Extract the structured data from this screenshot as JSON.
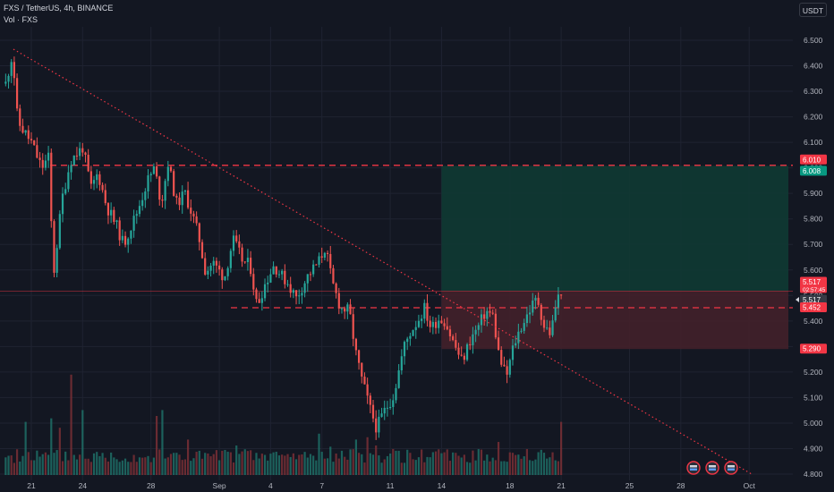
{
  "header": {
    "symbol_line": "FXS / TetherUS, 4h, BINANCE",
    "volume_label": "Vol · FXS",
    "unit_button": "USDT"
  },
  "colors": {
    "background": "#131722",
    "up": "#26a69a",
    "down": "#ef5350",
    "level_line": "#f23645",
    "trendline": "#f23645",
    "target_zone": "#0f3a33",
    "stop_zone": "#43202a",
    "grid": "#1f2331",
    "axis_text": "#b2b5be"
  },
  "chart_data": {
    "type": "candlestick",
    "title": "FXS / TetherUS, 4h, BINANCE",
    "price_axis": {
      "ylim": [
        4.78,
        6.58
      ],
      "ticks": [
        "6.500",
        "6.400",
        "6.300",
        "6.200",
        "6.100",
        "6.000",
        "5.900",
        "5.800",
        "5.700",
        "5.600",
        "5.500",
        "5.400",
        "5.300",
        "5.200",
        "5.100",
        "5.000",
        "4.900",
        "4.800"
      ]
    },
    "time_axis": {
      "ticks": [
        "21",
        "24",
        "28",
        "Sep",
        "4",
        "7",
        "11",
        "14",
        "18",
        "21",
        "25",
        "28",
        "Oct"
      ]
    },
    "price_labels": [
      {
        "text": "6.010",
        "value": 6.01,
        "color": "#f23645"
      },
      {
        "text": "6.008",
        "value": 6.008,
        "color": "#089981"
      },
      {
        "text": "5.517",
        "value": 5.517,
        "color": "#f23645",
        "sub": "02:57:45"
      },
      {
        "text": "5.517",
        "value": 5.517,
        "color": "#363a45"
      },
      {
        "text": "5.452",
        "value": 5.452,
        "color": "#f23645"
      },
      {
        "text": "5.290",
        "value": 5.29,
        "color": "#f23645"
      }
    ],
    "horizontal_levels": [
      {
        "value": 6.01,
        "style": "dashed"
      },
      {
        "value": 5.452,
        "style": "dashed"
      },
      {
        "value": 5.517,
        "style": "solid-thin"
      }
    ],
    "trendline": {
      "from_day": 21.0,
      "from_value": 6.47,
      "to_day": 48.0,
      "to_value": 4.8
    },
    "position": {
      "entry": 5.517,
      "target": 6.008,
      "stop": 5.29,
      "start_day": 45.0,
      "end_day": 48.7
    },
    "anchors": [
      [
        19.5,
        6.33
      ],
      [
        19.9,
        6.45
      ],
      [
        20.2,
        6.18
      ],
      [
        21.0,
        6.1
      ],
      [
        21.6,
        6.0
      ],
      [
        22.0,
        6.04
      ],
      [
        22.3,
        5.58
      ],
      [
        22.8,
        5.88
      ],
      [
        23.3,
        6.03
      ],
      [
        24.0,
        6.08
      ],
      [
        24.5,
        5.92
      ],
      [
        24.9,
        5.98
      ],
      [
        25.4,
        5.85
      ],
      [
        26.0,
        5.77
      ],
      [
        26.4,
        5.7
      ],
      [
        27.2,
        5.83
      ],
      [
        27.8,
        5.95
      ],
      [
        28.2,
        6.0
      ],
      [
        28.6,
        5.86
      ],
      [
        29.0,
        6.02
      ],
      [
        29.5,
        5.86
      ],
      [
        30.0,
        5.9
      ],
      [
        30.4,
        5.82
      ],
      [
        30.8,
        5.73
      ],
      [
        31.2,
        5.59
      ],
      [
        31.6,
        5.63
      ],
      [
        32.3,
        5.57
      ],
      [
        32.8,
        5.72
      ],
      [
        33.4,
        5.63
      ],
      [
        33.8,
        5.62
      ],
      [
        34.2,
        5.46
      ],
      [
        34.7,
        5.55
      ],
      [
        35.2,
        5.62
      ],
      [
        35.6,
        5.58
      ],
      [
        36.0,
        5.55
      ],
      [
        36.5,
        5.49
      ],
      [
        37.2,
        5.58
      ],
      [
        37.8,
        5.63
      ],
      [
        38.2,
        5.69
      ],
      [
        38.6,
        5.55
      ],
      [
        39.1,
        5.45
      ],
      [
        39.6,
        5.44
      ],
      [
        40.0,
        5.27
      ],
      [
        40.3,
        5.18
      ],
      [
        40.8,
        5.06
      ],
      [
        41.2,
        4.98
      ],
      [
        41.6,
        5.04
      ],
      [
        42.2,
        5.11
      ],
      [
        42.8,
        5.3
      ],
      [
        43.2,
        5.36
      ],
      [
        43.6,
        5.4
      ],
      [
        44.0,
        5.45
      ],
      [
        44.4,
        5.37
      ],
      [
        44.8,
        5.41
      ],
      [
        45.2,
        5.4
      ],
      [
        45.6,
        5.33
      ],
      [
        46.2,
        5.24
      ],
      [
        46.7,
        5.33
      ],
      [
        47.1,
        5.37
      ],
      [
        47.6,
        5.44
      ],
      [
        48.0,
        5.42
      ],
      [
        48.4,
        5.25
      ],
      [
        48.8,
        5.18
      ],
      [
        49.2,
        5.3
      ],
      [
        49.6,
        5.37
      ],
      [
        50.2,
        5.45
      ],
      [
        50.6,
        5.49
      ],
      [
        51.0,
        5.38
      ],
      [
        51.4,
        5.35
      ],
      [
        51.7,
        5.47
      ],
      [
        52.0,
        5.52
      ]
    ],
    "volume": {
      "spikes": [
        [
          23.3,
          0.85
        ],
        [
          20.6,
          0.45
        ],
        [
          22.2,
          0.48
        ],
        [
          22.6,
          0.4
        ],
        [
          24.0,
          0.55
        ],
        [
          28.3,
          0.5
        ],
        [
          28.7,
          0.55
        ],
        [
          30.2,
          0.3
        ],
        [
          33.0,
          0.25
        ],
        [
          37.8,
          0.35
        ],
        [
          40.0,
          0.3
        ],
        [
          40.6,
          0.32
        ],
        [
          42.2,
          0.22
        ],
        [
          44.6,
          0.2
        ],
        [
          48.3,
          0.28
        ],
        [
          52.0,
          0.45
        ],
        [
          51.4,
          0.15
        ],
        [
          38.5,
          0.24
        ],
        [
          33.4,
          0.2
        ],
        [
          41.2,
          0.25
        ]
      ],
      "base_level": 0.1
    }
  }
}
